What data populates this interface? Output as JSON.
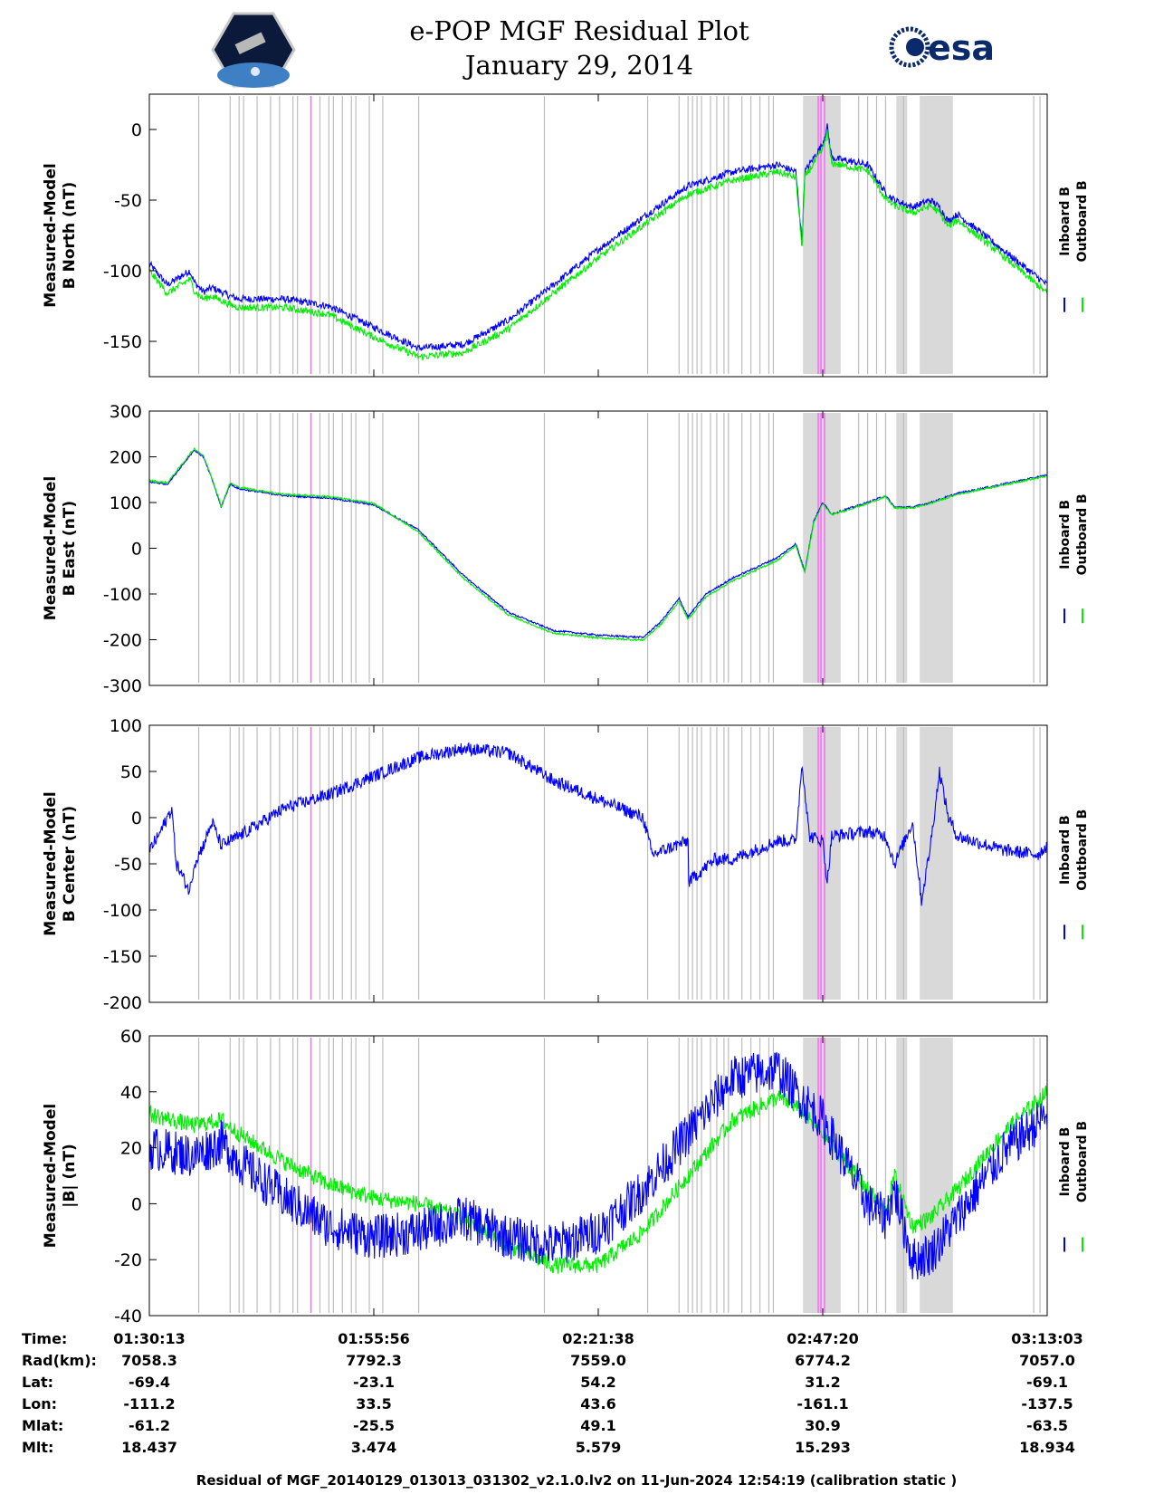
{
  "title": {
    "line1": "e-POP MGF Residual Plot",
    "line2": "January 29, 2014"
  },
  "logos": {
    "left": "cassiope-mission-patch",
    "right_text": "esa"
  },
  "colors": {
    "inboard": "#0000ff",
    "outboard": "#00ee00",
    "shade": "#d9d9d9",
    "marker_gray": "#bdbdbd",
    "marker_magenta": "#ff66ff"
  },
  "legend": {
    "inboard": "Inboard B",
    "outboard": "Outboard B"
  },
  "markers": {
    "gray_lines": [
      0.055,
      0.09,
      0.1,
      0.105,
      0.12,
      0.135,
      0.145,
      0.16,
      0.165,
      0.18,
      0.19,
      0.2,
      0.205,
      0.215,
      0.225,
      0.23,
      0.245,
      0.26,
      0.3,
      0.44,
      0.555,
      0.59,
      0.6,
      0.605,
      0.61,
      0.615,
      0.625,
      0.632,
      0.64,
      0.645,
      0.66,
      0.67,
      0.68,
      0.69,
      0.695,
      0.79,
      0.8,
      0.81,
      0.82,
      0.84,
      0.985,
      0.992
    ],
    "magenta_lines": [
      0.18,
      0.745,
      0.748,
      0.752
    ],
    "shaded_ranges": [
      [
        0.728,
        0.77
      ],
      [
        0.832,
        0.844
      ],
      [
        0.858,
        0.895
      ]
    ]
  },
  "chart_data": [
    {
      "type": "line",
      "ylabel_line1": "Measured-Model",
      "ylabel_line2": "B North (nT)",
      "ylim": [
        -175,
        25
      ],
      "yticks": [
        0,
        -50,
        -100,
        -150
      ],
      "series": [
        {
          "name": "Inboard B",
          "color": "#0000ff",
          "noise": 2.5,
          "x": [
            0,
            0.02,
            0.045,
            0.05,
            0.06,
            0.07,
            0.09,
            0.1,
            0.15,
            0.2,
            0.25,
            0.3,
            0.35,
            0.4,
            0.45,
            0.5,
            0.55,
            0.6,
            0.65,
            0.7,
            0.72,
            0.727,
            0.73,
            0.74,
            0.75,
            0.755,
            0.76,
            0.8,
            0.82,
            0.83,
            0.85,
            0.87,
            0.88,
            0.89,
            0.9,
            0.95,
            1.0
          ],
          "y": [
            -95,
            -110,
            -100,
            -108,
            -115,
            -112,
            -118,
            -120,
            -120,
            -125,
            -140,
            -155,
            -152,
            -135,
            -110,
            -85,
            -62,
            -40,
            -30,
            -25,
            -30,
            -80,
            -30,
            -20,
            -10,
            2,
            -20,
            -25,
            -45,
            -50,
            -55,
            -50,
            -55,
            -65,
            -60,
            -85,
            -110
          ]
        },
        {
          "name": "Outboard B",
          "color": "#00ee00",
          "noise": 2.5,
          "x": [
            0,
            0.02,
            0.045,
            0.05,
            0.06,
            0.07,
            0.09,
            0.1,
            0.15,
            0.2,
            0.25,
            0.3,
            0.35,
            0.4,
            0.45,
            0.5,
            0.55,
            0.6,
            0.65,
            0.7,
            0.72,
            0.727,
            0.73,
            0.74,
            0.75,
            0.755,
            0.76,
            0.8,
            0.82,
            0.83,
            0.85,
            0.87,
            0.88,
            0.89,
            0.9,
            0.95,
            1.0
          ],
          "y": [
            -100,
            -116,
            -106,
            -114,
            -120,
            -118,
            -124,
            -126,
            -126,
            -131,
            -147,
            -161,
            -158,
            -141,
            -116,
            -91,
            -68,
            -46,
            -36,
            -30,
            -34,
            -84,
            -34,
            -24,
            -14,
            -2,
            -24,
            -29,
            -49,
            -54,
            -59,
            -54,
            -59,
            -69,
            -64,
            -89,
            -116
          ]
        }
      ]
    },
    {
      "type": "line",
      "ylabel_line1": "Measured-Model",
      "ylabel_line2": "B East (nT)",
      "ylim": [
        -300,
        300
      ],
      "yticks": [
        300,
        200,
        100,
        0,
        -100,
        -200,
        -300
      ],
      "series": [
        {
          "name": "Inboard B",
          "color": "#0000ff",
          "noise": 2,
          "x": [
            0,
            0.02,
            0.05,
            0.06,
            0.07,
            0.08,
            0.09,
            0.1,
            0.15,
            0.2,
            0.25,
            0.3,
            0.35,
            0.4,
            0.45,
            0.5,
            0.55,
            0.57,
            0.59,
            0.6,
            0.62,
            0.65,
            0.7,
            0.72,
            0.73,
            0.74,
            0.75,
            0.76,
            0.8,
            0.82,
            0.83,
            0.85,
            0.87,
            0.9,
            1.0
          ],
          "y": [
            145,
            140,
            215,
            200,
            150,
            90,
            140,
            130,
            115,
            110,
            95,
            40,
            -60,
            -140,
            -180,
            -190,
            -195,
            -160,
            -110,
            -150,
            -100,
            -65,
            -20,
            10,
            -50,
            60,
            100,
            75,
            100,
            115,
            90,
            90,
            100,
            120,
            160
          ]
        },
        {
          "name": "Outboard B",
          "color": "#00ee00",
          "noise": 2,
          "x": [
            0,
            0.02,
            0.05,
            0.06,
            0.07,
            0.08,
            0.09,
            0.1,
            0.15,
            0.2,
            0.25,
            0.3,
            0.35,
            0.4,
            0.45,
            0.5,
            0.55,
            0.57,
            0.59,
            0.6,
            0.62,
            0.65,
            0.7,
            0.72,
            0.73,
            0.74,
            0.75,
            0.76,
            0.8,
            0.82,
            0.83,
            0.85,
            0.87,
            0.9,
            1.0
          ],
          "y": [
            148,
            143,
            218,
            203,
            153,
            93,
            143,
            133,
            118,
            113,
            98,
            35,
            -66,
            -146,
            -186,
            -196,
            -201,
            -166,
            -116,
            -156,
            -106,
            -71,
            -26,
            6,
            -54,
            56,
            97,
            73,
            98,
            113,
            88,
            88,
            98,
            118,
            158
          ]
        }
      ]
    },
    {
      "type": "line",
      "ylabel_line1": "Measured-Model",
      "ylabel_line2": "B Center (nT)",
      "ylim": [
        -200,
        100
      ],
      "yticks": [
        100,
        50,
        0,
        -50,
        -100,
        -150,
        -200
      ],
      "series": [
        {
          "name": "Inboard B",
          "color": "#0000ff",
          "noise": 7,
          "x": [
            0,
            0.01,
            0.025,
            0.03,
            0.045,
            0.05,
            0.06,
            0.07,
            0.08,
            0.1,
            0.15,
            0.2,
            0.25,
            0.3,
            0.35,
            0.4,
            0.45,
            0.5,
            0.55,
            0.56,
            0.6,
            0.6,
            0.63,
            0.65,
            0.7,
            0.72,
            0.727,
            0.735,
            0.75,
            0.755,
            0.76,
            0.8,
            0.82,
            0.83,
            0.85,
            0.86,
            0.87,
            0.88,
            0.89,
            0.9,
            0.95,
            0.99,
            1.0
          ],
          "y": [
            -35,
            -20,
            10,
            -50,
            -80,
            -50,
            -30,
            -5,
            -30,
            -20,
            10,
            25,
            45,
            65,
            75,
            70,
            40,
            20,
            0,
            -40,
            -25,
            -70,
            -45,
            -45,
            -25,
            -25,
            60,
            -20,
            -25,
            -70,
            -20,
            -15,
            -20,
            -50,
            -5,
            -90,
            -30,
            50,
            0,
            -20,
            -35,
            -40,
            -30
          ]
        }
      ]
    },
    {
      "type": "line",
      "ylabel_line1": "Measured-Model",
      "ylabel_line2": "|B| (nT)",
      "ylim": [
        -40,
        60
      ],
      "yticks": [
        60,
        40,
        20,
        0,
        -20,
        -40
      ],
      "series": [
        {
          "name": "Outboard B",
          "color": "#00ee00",
          "noise": 3,
          "x": [
            0,
            0.05,
            0.08,
            0.1,
            0.15,
            0.2,
            0.25,
            0.3,
            0.35,
            0.4,
            0.45,
            0.5,
            0.55,
            0.6,
            0.65,
            0.7,
            0.72,
            0.75,
            0.8,
            0.82,
            0.83,
            0.85,
            0.87,
            0.9,
            0.95,
            1.0
          ],
          "y": [
            32,
            28,
            30,
            25,
            15,
            7,
            2,
            0,
            -5,
            -15,
            -22,
            -22,
            -10,
            10,
            30,
            38,
            35,
            25,
            5,
            -3,
            10,
            -8,
            -5,
            5,
            25,
            40
          ]
        },
        {
          "name": "Inboard B",
          "color": "#0000ff",
          "noise": 8,
          "x": [
            0,
            0.05,
            0.08,
            0.1,
            0.15,
            0.2,
            0.25,
            0.3,
            0.35,
            0.4,
            0.45,
            0.5,
            0.55,
            0.6,
            0.65,
            0.7,
            0.72,
            0.75,
            0.8,
            0.82,
            0.83,
            0.85,
            0.87,
            0.9,
            0.95,
            1.0
          ],
          "y": [
            20,
            17,
            22,
            15,
            2,
            -8,
            -12,
            -10,
            -5,
            -12,
            -15,
            -10,
            5,
            25,
            45,
            48,
            40,
            30,
            0,
            -5,
            5,
            -20,
            -18,
            -5,
            18,
            32
          ]
        }
      ]
    }
  ],
  "x_axis": {
    "tick_labels": [
      "01:30:13",
      "01:55:56",
      "02:21:38",
      "02:47:20",
      "03:13:03"
    ]
  },
  "ephemeris": [
    {
      "label": "Time:",
      "values": [
        "01:30:13",
        "01:55:56",
        "02:21:38",
        "02:47:20",
        "03:13:03"
      ]
    },
    {
      "label": "Rad(km):",
      "values": [
        "7058.3",
        "7792.3",
        "7559.0",
        "6774.2",
        "7057.0"
      ]
    },
    {
      "label": "Lat:",
      "values": [
        "-69.4",
        "-23.1",
        "54.2",
        "31.2",
        "-69.1"
      ]
    },
    {
      "label": "Lon:",
      "values": [
        "-111.2",
        "33.5",
        "43.6",
        "-161.1",
        "-137.5"
      ]
    },
    {
      "label": "Mlat:",
      "values": [
        "-61.2",
        "-25.5",
        "49.1",
        "30.9",
        "-63.5"
      ]
    },
    {
      "label": "Mlt:",
      "values": [
        "18.437",
        "3.474",
        "5.579",
        "15.293",
        "18.934"
      ]
    }
  ],
  "footer": "Residual of MGF_20140129_013013_031302_v2.1.0.lv2 on 11-Jun-2024 12:54:19 (calibration static )"
}
